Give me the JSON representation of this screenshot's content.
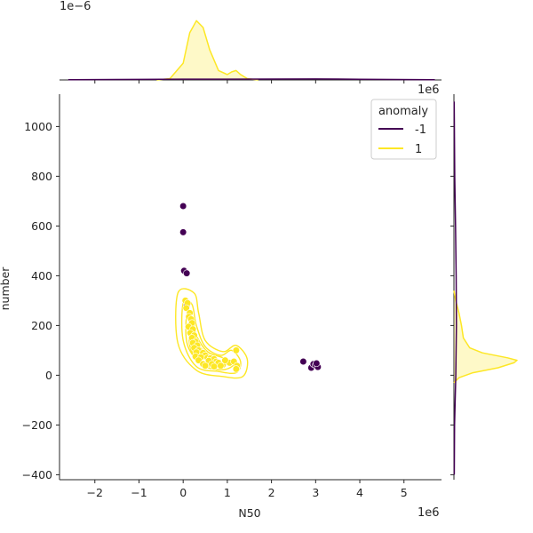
{
  "chart_data": {
    "type": "scatter",
    "title": "",
    "xlabel": "N50",
    "ylabel": "number",
    "x_offset_label": "1e6",
    "xlim": [
      -2.8,
      5.85
    ],
    "ylim": [
      -420,
      1130
    ],
    "xticks": [
      -2,
      -1,
      0,
      1,
      2,
      3,
      4,
      5
    ],
    "xtick_labels": [
      "−2",
      "−1",
      "0",
      "1",
      "2",
      "3",
      "4",
      "5"
    ],
    "yticks": [
      -400,
      -200,
      0,
      200,
      400,
      600,
      800,
      1000
    ],
    "ytick_labels": [
      "−400",
      "−200",
      "0",
      "200",
      "400",
      "600",
      "800",
      "1000"
    ],
    "legend": {
      "title": "anomaly",
      "placement": "top-right",
      "entries": [
        {
          "label": "-1",
          "color": "#440154"
        },
        {
          "label": "1",
          "color": "#fde725"
        }
      ]
    },
    "series": [
      {
        "name": "-1",
        "color": "#440154",
        "points": [
          [
            0.0,
            680
          ],
          [
            0.0,
            575
          ],
          [
            0.02,
            420
          ],
          [
            0.08,
            410
          ],
          [
            0.08,
            280
          ],
          [
            2.72,
            55
          ],
          [
            2.9,
            30
          ],
          [
            2.95,
            45
          ],
          [
            3.0,
            40
          ],
          [
            3.05,
            33
          ],
          [
            3.02,
            48
          ]
        ]
      },
      {
        "name": "1",
        "color": "#fde725",
        "points": [
          [
            0.05,
            300
          ],
          [
            0.1,
            290
          ],
          [
            0.07,
            270
          ],
          [
            0.15,
            250
          ],
          [
            0.13,
            235
          ],
          [
            0.18,
            225
          ],
          [
            0.2,
            210
          ],
          [
            0.12,
            195
          ],
          [
            0.22,
            185
          ],
          [
            0.16,
            170
          ],
          [
            0.25,
            160
          ],
          [
            0.2,
            150
          ],
          [
            0.28,
            135
          ],
          [
            0.22,
            130
          ],
          [
            0.32,
            120
          ],
          [
            0.25,
            110
          ],
          [
            0.35,
            100
          ],
          [
            0.3,
            92
          ],
          [
            0.45,
            90
          ],
          [
            0.5,
            80
          ],
          [
            0.28,
            75
          ],
          [
            0.4,
            72
          ],
          [
            0.55,
            70
          ],
          [
            0.62,
            68
          ],
          [
            0.7,
            65
          ],
          [
            0.35,
            60
          ],
          [
            0.58,
            58
          ],
          [
            0.75,
            55
          ],
          [
            0.8,
            50
          ],
          [
            0.45,
            45
          ],
          [
            0.65,
            45
          ],
          [
            0.9,
            42
          ],
          [
            0.5,
            38
          ],
          [
            0.7,
            35
          ],
          [
            0.85,
            38
          ],
          [
            1.05,
            50
          ],
          [
            1.15,
            55
          ],
          [
            1.22,
            38
          ],
          [
            1.2,
            25
          ],
          [
            1.2,
            100
          ],
          [
            0.95,
            60
          ]
        ]
      }
    ],
    "marginal_top": {
      "offset_label": "1e−6",
      "series": [
        {
          "name": "1",
          "color": "#fde725",
          "x": [
            -0.6,
            -0.3,
            0.0,
            0.15,
            0.3,
            0.45,
            0.6,
            0.8,
            1.0,
            1.1,
            1.2,
            1.3,
            1.45,
            1.7
          ],
          "density": [
            0.0,
            0.02,
            0.25,
            0.7,
            0.88,
            0.78,
            0.45,
            0.14,
            0.08,
            0.12,
            0.14,
            0.08,
            0.02,
            0.0
          ]
        },
        {
          "name": "-1",
          "color": "#440154",
          "x": [
            -2.6,
            -1.0,
            0.0,
            1.0,
            2.0,
            3.0,
            4.0,
            5.7
          ],
          "density": [
            0.004,
            0.008,
            0.012,
            0.012,
            0.013,
            0.015,
            0.01,
            0.003
          ]
        }
      ]
    },
    "marginal_right": {
      "offset_label": "1e6",
      "series": [
        {
          "name": "1",
          "color": "#fde725",
          "y": [
            -30,
            -10,
            10,
            30,
            50,
            60,
            70,
            90,
            110,
            150,
            200,
            250,
            300,
            340
          ],
          "density": [
            0.0,
            0.08,
            0.3,
            0.7,
            0.95,
            1.0,
            0.85,
            0.45,
            0.25,
            0.15,
            0.12,
            0.08,
            0.03,
            0.0
          ]
        },
        {
          "name": "-1",
          "color": "#440154",
          "y": [
            -400,
            -200,
            0,
            200,
            400,
            600,
            800,
            1100
          ],
          "density": [
            0.005,
            0.01,
            0.03,
            0.04,
            0.035,
            0.025,
            0.012,
            0.004
          ]
        }
      ]
    }
  }
}
